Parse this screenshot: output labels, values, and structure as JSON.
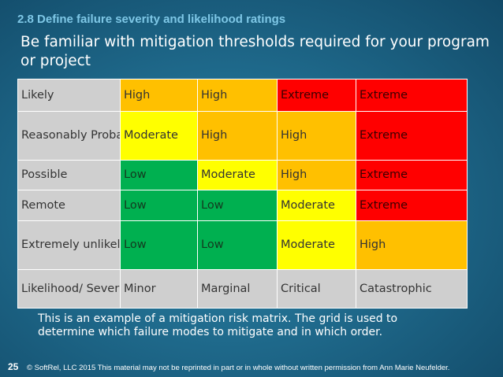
{
  "header": {
    "section": "2.8 Define failure severity and likelihood ratings",
    "title": "Be familiar with mitigation thresholds required for your program or project"
  },
  "matrix": {
    "rows": [
      {
        "label": "Likely",
        "cells": [
          "High",
          "High",
          "Extreme",
          "Extreme"
        ]
      },
      {
        "label": "Reasonably Probable",
        "cells": [
          "Moderate",
          "High",
          "High",
          "Extreme"
        ]
      },
      {
        "label": "Possible",
        "cells": [
          "Low",
          "Moderate",
          "High",
          "Extreme"
        ]
      },
      {
        "label": "Remote",
        "cells": [
          "Low",
          "Low",
          "Moderate",
          "Extreme"
        ]
      },
      {
        "label": "Extremely unlikely",
        "cells": [
          "Low",
          "Low",
          "Moderate",
          "High"
        ]
      }
    ],
    "axis_label": "Likelihood/ Severity",
    "severity": [
      "Minor",
      "Marginal",
      "Critical",
      "Catastrophic"
    ],
    "colors": {
      "High": "#ffc000",
      "Extreme": "#ff0000",
      "Moderate": "#ffff00",
      "Low": "#00b050",
      "label_bg": "#cfcfcf"
    }
  },
  "description": "This is an example of a mitigation risk matrix.  The grid is used to determine which failure modes to mitigate and in which order.",
  "footer": {
    "page_number": "25",
    "copyright": "© SoftRel, LLC 2015 This material may not be reprinted in part or in whole without written permission from Ann Marie Neufelder."
  }
}
